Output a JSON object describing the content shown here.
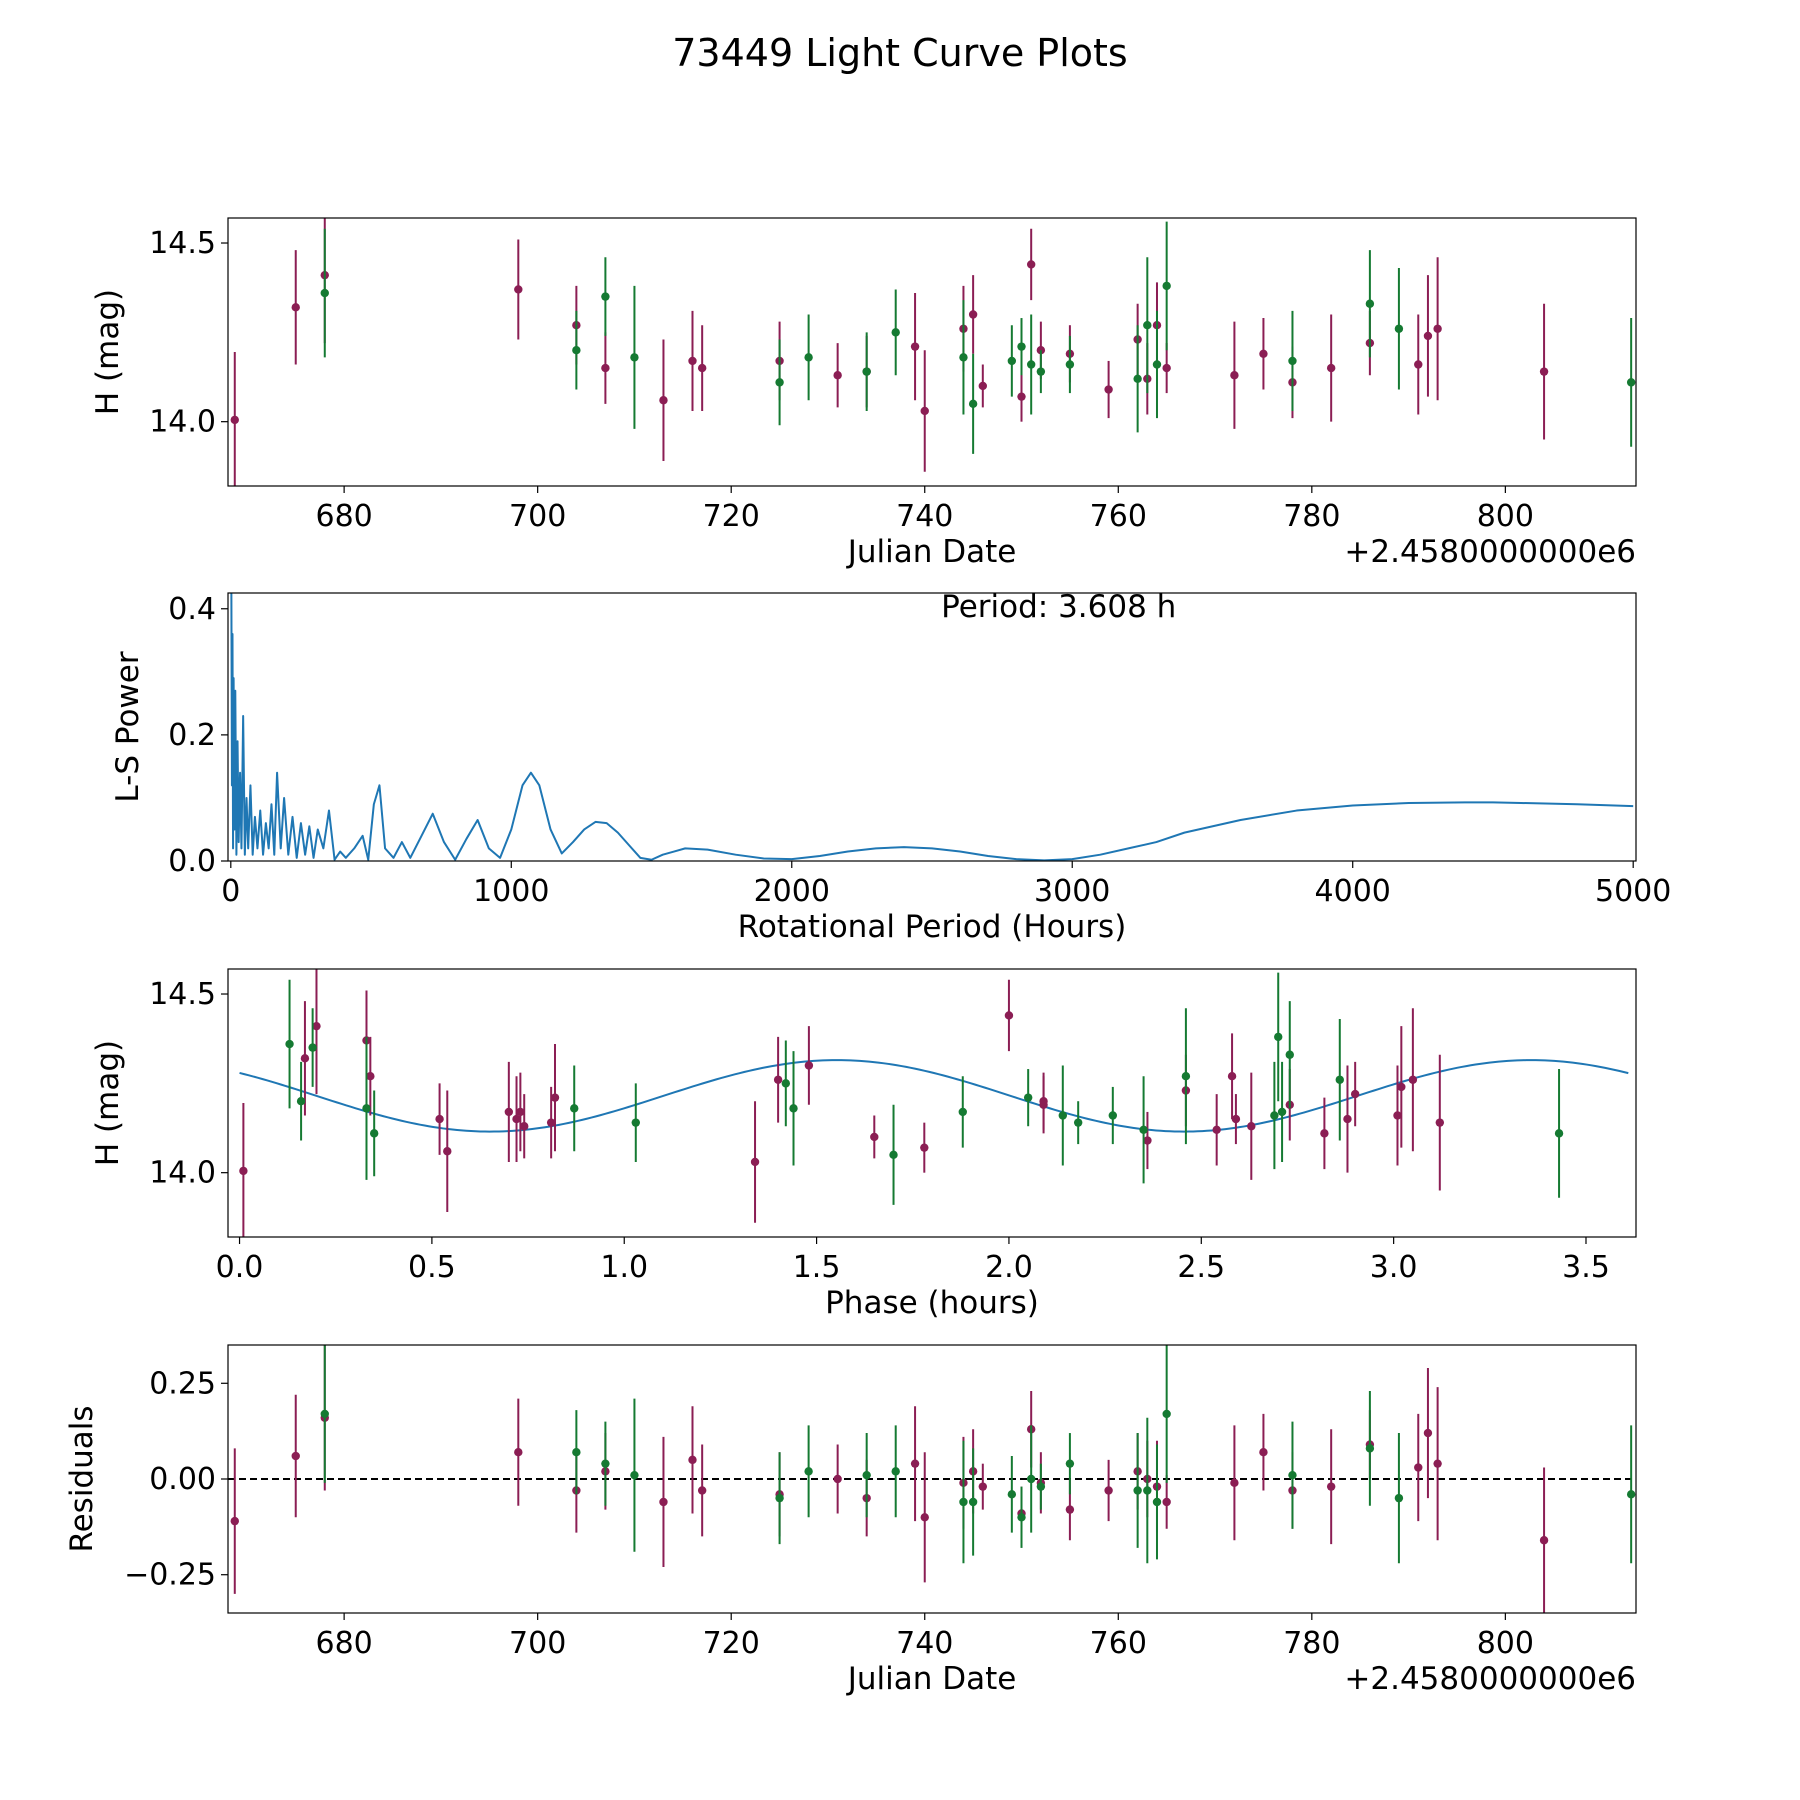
{
  "chart_data": {
    "type": "multi-panel",
    "title": "73449 Light Curve Plots",
    "colors": {
      "red_band": "#8b1e54",
      "green_band": "#157a32",
      "curve": "#1f77b4",
      "zero_line": "#000000"
    },
    "observations": {
      "red_band": [
        {
          "jd": 668.7,
          "mag": 14.005,
          "err": 0.19,
          "phase": 0.01,
          "res": -0.11
        },
        {
          "jd": 675.0,
          "mag": 14.32,
          "err": 0.16,
          "phase": 0.17,
          "res": 0.06
        },
        {
          "jd": 678.0,
          "mag": 14.41,
          "err": 0.19,
          "phase": 0.2,
          "res": 0.16
        },
        {
          "jd": 698.0,
          "mag": 14.37,
          "err": 0.14,
          "phase": 0.33,
          "res": 0.07
        },
        {
          "jd": 704.0,
          "mag": 14.27,
          "err": 0.11,
          "phase": 0.34,
          "res": -0.03
        },
        {
          "jd": 707.0,
          "mag": 14.15,
          "err": 0.1,
          "phase": 0.52,
          "res": 0.02
        },
        {
          "jd": 713.0,
          "mag": 14.06,
          "err": 0.17,
          "phase": 0.54,
          "res": -0.06
        },
        {
          "jd": 716.0,
          "mag": 14.17,
          "err": 0.14,
          "phase": 0.7,
          "res": 0.05
        },
        {
          "jd": 717.0,
          "mag": 14.15,
          "err": 0.12,
          "phase": 0.72,
          "res": -0.03
        },
        {
          "jd": 725.0,
          "mag": 14.17,
          "err": 0.11,
          "phase": 0.73,
          "res": -0.04
        },
        {
          "jd": 731.0,
          "mag": 14.13,
          "err": 0.09,
          "phase": 0.74,
          "res": 0.0
        },
        {
          "jd": 734.0,
          "mag": 14.14,
          "err": 0.1,
          "phase": 0.81,
          "res": -0.05
        },
        {
          "jd": 739.0,
          "mag": 14.21,
          "err": 0.15,
          "phase": 0.82,
          "res": 0.04
        },
        {
          "jd": 740.0,
          "mag": 14.03,
          "err": 0.17,
          "phase": 1.34,
          "res": -0.1
        },
        {
          "jd": 744.0,
          "mag": 14.26,
          "err": 0.12,
          "phase": 1.4,
          "res": -0.01
        },
        {
          "jd": 745.0,
          "mag": 14.3,
          "err": 0.11,
          "phase": 1.48,
          "res": 0.02
        },
        {
          "jd": 746.0,
          "mag": 14.1,
          "err": 0.06,
          "phase": 1.65,
          "res": -0.02
        },
        {
          "jd": 750.0,
          "mag": 14.07,
          "err": 0.07,
          "phase": 1.78,
          "res": -0.09
        },
        {
          "jd": 751.0,
          "mag": 14.44,
          "err": 0.1,
          "phase": 2.0,
          "res": 0.13
        },
        {
          "jd": 752.0,
          "mag": 14.2,
          "err": 0.08,
          "phase": 2.09,
          "res": -0.01
        },
        {
          "jd": 755.0,
          "mag": 14.19,
          "err": 0.08,
          "phase": 2.09,
          "res": -0.08
        },
        {
          "jd": 759.0,
          "mag": 14.09,
          "err": 0.08,
          "phase": 2.36,
          "res": -0.03
        },
        {
          "jd": 762.0,
          "mag": 14.23,
          "err": 0.1,
          "phase": 2.46,
          "res": 0.02
        },
        {
          "jd": 763.0,
          "mag": 14.12,
          "err": 0.1,
          "phase": 2.54,
          "res": 0.0
        },
        {
          "jd": 764.0,
          "mag": 14.27,
          "err": 0.12,
          "phase": 2.58,
          "res": -0.02
        },
        {
          "jd": 765.0,
          "mag": 14.15,
          "err": 0.07,
          "phase": 2.59,
          "res": -0.06
        },
        {
          "jd": 772.0,
          "mag": 14.13,
          "err": 0.15,
          "phase": 2.63,
          "res": -0.01
        },
        {
          "jd": 775.0,
          "mag": 14.19,
          "err": 0.1,
          "phase": 2.73,
          "res": 0.07
        },
        {
          "jd": 778.0,
          "mag": 14.11,
          "err": 0.1,
          "phase": 2.82,
          "res": -0.03
        },
        {
          "jd": 782.0,
          "mag": 14.15,
          "err": 0.15,
          "phase": 2.88,
          "res": -0.02
        },
        {
          "jd": 786.0,
          "mag": 14.22,
          "err": 0.09,
          "phase": 2.9,
          "res": 0.09
        },
        {
          "jd": 791.0,
          "mag": 14.16,
          "err": 0.14,
          "phase": 3.01,
          "res": 0.03
        },
        {
          "jd": 792.0,
          "mag": 14.24,
          "err": 0.17,
          "phase": 3.02,
          "res": 0.12
        },
        {
          "jd": 793.0,
          "mag": 14.26,
          "err": 0.2,
          "phase": 3.05,
          "res": 0.04
        },
        {
          "jd": 804.0,
          "mag": 14.14,
          "err": 0.19,
          "phase": 3.12,
          "res": -0.16
        }
      ],
      "green_band": [
        {
          "jd": 678.0,
          "mag": 14.36,
          "err": 0.18,
          "phase": 0.13,
          "res": 0.17
        },
        {
          "jd": 704.0,
          "mag": 14.2,
          "err": 0.11,
          "phase": 0.16,
          "res": 0.07
        },
        {
          "jd": 707.0,
          "mag": 14.35,
          "err": 0.11,
          "phase": 0.19,
          "res": 0.04
        },
        {
          "jd": 710.0,
          "mag": 14.18,
          "err": 0.2,
          "phase": 0.33,
          "res": 0.01
        },
        {
          "jd": 725.0,
          "mag": 14.11,
          "err": 0.12,
          "phase": 0.35,
          "res": -0.05
        },
        {
          "jd": 728.0,
          "mag": 14.18,
          "err": 0.12,
          "phase": 0.87,
          "res": 0.02
        },
        {
          "jd": 734.0,
          "mag": 14.14,
          "err": 0.11,
          "phase": 1.03,
          "res": 0.01
        },
        {
          "jd": 737.0,
          "mag": 14.25,
          "err": 0.12,
          "phase": 1.42,
          "res": 0.02
        },
        {
          "jd": 744.0,
          "mag": 14.18,
          "err": 0.16,
          "phase": 1.44,
          "res": -0.06
        },
        {
          "jd": 745.0,
          "mag": 14.05,
          "err": 0.14,
          "phase": 1.7,
          "res": -0.06
        },
        {
          "jd": 749.0,
          "mag": 14.17,
          "err": 0.1,
          "phase": 1.88,
          "res": -0.04
        },
        {
          "jd": 750.0,
          "mag": 14.21,
          "err": 0.08,
          "phase": 2.05,
          "res": -0.1
        },
        {
          "jd": 751.0,
          "mag": 14.16,
          "err": 0.14,
          "phase": 2.14,
          "res": 0.0
        },
        {
          "jd": 752.0,
          "mag": 14.14,
          "err": 0.06,
          "phase": 2.18,
          "res": -0.02
        },
        {
          "jd": 755.0,
          "mag": 14.16,
          "err": 0.08,
          "phase": 2.27,
          "res": 0.04
        },
        {
          "jd": 762.0,
          "mag": 14.12,
          "err": 0.15,
          "phase": 2.35,
          "res": -0.03
        },
        {
          "jd": 763.0,
          "mag": 14.27,
          "err": 0.19,
          "phase": 2.46,
          "res": -0.03
        },
        {
          "jd": 764.0,
          "mag": 14.16,
          "err": 0.15,
          "phase": 2.69,
          "res": -0.06
        },
        {
          "jd": 765.0,
          "mag": 14.38,
          "err": 0.18,
          "phase": 2.7,
          "res": 0.17
        },
        {
          "jd": 778.0,
          "mag": 14.17,
          "err": 0.14,
          "phase": 2.71,
          "res": 0.01
        },
        {
          "jd": 786.0,
          "mag": 14.33,
          "err": 0.15,
          "phase": 2.73,
          "res": 0.08
        },
        {
          "jd": 789.0,
          "mag": 14.26,
          "err": 0.17,
          "phase": 2.86,
          "res": -0.05
        },
        {
          "jd": 813.0,
          "mag": 14.11,
          "err": 0.18,
          "phase": 3.43,
          "res": -0.04
        }
      ]
    },
    "panels": [
      {
        "id": "light-curve",
        "type": "scatter-errorbar",
        "xlabel": "Julian Date",
        "ylabel": "H (mag)",
        "offset_label": "+2.4580000000e6",
        "xlim": [
          668,
          813.5
        ],
        "ylim": [
          13.82,
          14.57
        ],
        "xticks": [
          680,
          700,
          720,
          740,
          760,
          780,
          800
        ],
        "xtick_labels": [
          "680",
          "700",
          "720",
          "740",
          "760",
          "780",
          "800"
        ],
        "yticks": [
          14.0,
          14.5
        ],
        "ytick_labels": [
          "14.0",
          "14.5"
        ]
      },
      {
        "id": "periodogram",
        "type": "line",
        "xlabel": "Rotational Period (Hours)",
        "ylabel": "L-S Power",
        "annotation": "Period: 3.608 h",
        "xlim": [
          -10,
          5010
        ],
        "ylim": [
          0,
          0.425
        ],
        "xticks": [
          0,
          1000,
          2000,
          3000,
          4000,
          5000
        ],
        "xtick_labels": [
          "0",
          "1000",
          "2000",
          "3000",
          "4000",
          "5000"
        ],
        "yticks": [
          0.0,
          0.2,
          0.4
        ],
        "ytick_labels": [
          "0.0",
          "0.2",
          "0.4"
        ],
        "x": [
          2,
          4,
          6,
          8,
          10,
          13,
          16,
          20,
          24,
          28,
          33,
          38,
          44,
          50,
          56,
          62,
          70,
          78,
          86,
          95,
          105,
          115,
          125,
          135,
          145,
          155,
          165,
          178,
          190,
          205,
          220,
          235,
          250,
          265,
          280,
          295,
          310,
          330,
          350,
          370,
          390,
          410,
          440,
          470,
          490,
          510,
          530,
          550,
          580,
          610,
          640,
          680,
          720,
          760,
          800,
          840,
          880,
          920,
          960,
          1000,
          1040,
          1070,
          1100,
          1140,
          1180,
          1220,
          1260,
          1300,
          1340,
          1380,
          1420,
          1460,
          1500,
          1540,
          1580,
          1620,
          1700,
          1800,
          1900,
          2000,
          2100,
          2200,
          2300,
          2400,
          2500,
          2600,
          2700,
          2800,
          2900,
          3000,
          3100,
          3200,
          3300,
          3400,
          3600,
          3800,
          4000,
          4200,
          4400,
          4500,
          4600,
          4800,
          5000
        ],
        "y": [
          0.43,
          0.12,
          0.36,
          0.02,
          0.29,
          0.05,
          0.27,
          0.01,
          0.19,
          0.03,
          0.14,
          0.02,
          0.23,
          0.01,
          0.1,
          0.02,
          0.12,
          0.01,
          0.07,
          0.02,
          0.08,
          0.01,
          0.06,
          0.02,
          0.09,
          0.01,
          0.14,
          0.02,
          0.1,
          0.01,
          0.07,
          0.005,
          0.06,
          0.01,
          0.055,
          0.005,
          0.05,
          0.02,
          0.08,
          0.002,
          0.015,
          0.005,
          0.02,
          0.04,
          0.002,
          0.09,
          0.12,
          0.02,
          0.005,
          0.03,
          0.005,
          0.04,
          0.075,
          0.03,
          0.002,
          0.035,
          0.065,
          0.02,
          0.005,
          0.05,
          0.12,
          0.14,
          0.12,
          0.05,
          0.012,
          0.03,
          0.05,
          0.062,
          0.06,
          0.045,
          0.025,
          0.005,
          0.002,
          0.01,
          0.015,
          0.02,
          0.018,
          0.01,
          0.004,
          0.003,
          0.008,
          0.015,
          0.02,
          0.022,
          0.02,
          0.015,
          0.008,
          0.003,
          0.001,
          0.003,
          0.01,
          0.02,
          0.03,
          0.045,
          0.065,
          0.08,
          0.088,
          0.092,
          0.093,
          0.093,
          0.092,
          0.09,
          0.087
        ]
      },
      {
        "id": "phase-curve",
        "type": "scatter-errorbar",
        "xlabel": "Phase (hours)",
        "ylabel": "H (mag)",
        "xlim": [
          -0.03,
          3.63
        ],
        "ylim": [
          13.82,
          14.57
        ],
        "xticks": [
          0.0,
          0.5,
          1.0,
          1.5,
          2.0,
          2.5,
          3.0,
          3.5
        ],
        "xtick_labels": [
          "0.0",
          "0.5",
          "1.0",
          "1.5",
          "2.0",
          "2.5",
          "3.0",
          "3.5"
        ],
        "yticks": [
          14.0,
          14.5
        ],
        "ytick_labels": [
          "14.0",
          "14.5"
        ],
        "model": {
          "mean": 14.215,
          "amplitude": 0.1,
          "period": 1.804,
          "phase_offset": 0.2
        }
      },
      {
        "id": "residuals",
        "type": "scatter-errorbar",
        "xlabel": "Julian Date",
        "ylabel": "Residuals",
        "offset_label": "+2.4580000000e6",
        "xlim": [
          668,
          813.5
        ],
        "ylim": [
          -0.35,
          0.35
        ],
        "xticks": [
          680,
          700,
          720,
          740,
          760,
          780,
          800
        ],
        "xtick_labels": [
          "680",
          "700",
          "720",
          "740",
          "760",
          "780",
          "800"
        ],
        "yticks": [
          -0.25,
          0.0,
          0.25
        ],
        "ytick_labels": [
          "−0.25",
          "0.00",
          "0.25"
        ]
      }
    ]
  }
}
